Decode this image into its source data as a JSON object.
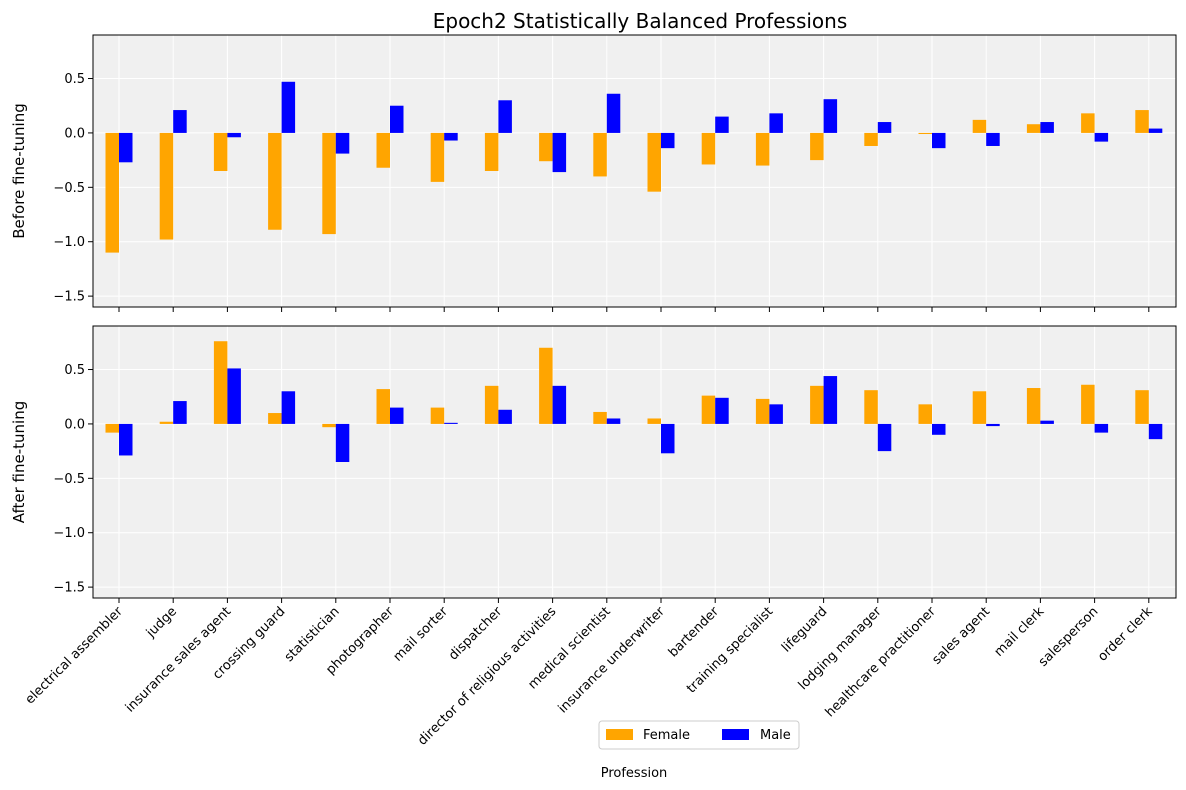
{
  "chart_data": {
    "type": "bar",
    "title": "Epoch2 Statistically Balanced Professions",
    "xlabel": "Profession",
    "categories": [
      "electrical assembler",
      "judge",
      "insurance sales agent",
      "crossing guard",
      "statistician",
      "photographer",
      "mail sorter",
      "dispatcher",
      "director of religious activities",
      "medical scientist",
      "insurance underwriter",
      "bartender",
      "training specialist",
      "lifeguard",
      "lodging manager",
      "healthcare practitioner",
      "sales agent",
      "mail clerk",
      "salesperson",
      "order clerk"
    ],
    "legend": {
      "position": "bottom-center",
      "entries": [
        "Female",
        "Male"
      ]
    },
    "colors": {
      "Female": "#ffa500",
      "Male": "#0000ff",
      "plot_bg": "#f0f0f0",
      "grid": "#ffffff"
    },
    "grid": true,
    "yticks": [
      "0.5",
      "0.0",
      "−0.5",
      "−1.0",
      "−1.5"
    ],
    "ytick_values": [
      0.5,
      0.0,
      -0.5,
      -1.0,
      -1.5
    ],
    "panels": [
      {
        "ylabel": "Before fine-tuning",
        "ylim": [
          -1.6,
          0.9
        ],
        "series": [
          {
            "name": "Female",
            "values": [
              -1.1,
              -0.98,
              -0.35,
              -0.89,
              -0.93,
              -0.32,
              -0.45,
              -0.35,
              -0.26,
              -0.4,
              -0.54,
              -0.29,
              -0.3,
              -0.25,
              -0.12,
              -0.01,
              0.12,
              0.08,
              0.18,
              0.21
            ]
          },
          {
            "name": "Male",
            "values": [
              -0.27,
              0.21,
              -0.04,
              0.47,
              -0.19,
              0.25,
              -0.07,
              0.3,
              -0.36,
              0.36,
              -0.14,
              0.15,
              0.18,
              0.31,
              0.1,
              -0.14,
              -0.12,
              0.1,
              -0.08,
              0.04
            ]
          }
        ]
      },
      {
        "ylabel": "After fine-tuning",
        "ylim": [
          -1.6,
          0.9
        ],
        "series": [
          {
            "name": "Female",
            "values": [
              -0.08,
              0.02,
              0.76,
              0.1,
              -0.03,
              0.32,
              0.15,
              0.35,
              0.7,
              0.11,
              0.05,
              0.26,
              0.23,
              0.35,
              0.31,
              0.18,
              0.3,
              0.33,
              0.36,
              0.31
            ]
          },
          {
            "name": "Male",
            "values": [
              -0.29,
              0.21,
              0.51,
              0.3,
              -0.35,
              0.15,
              0.01,
              0.13,
              0.35,
              0.05,
              -0.27,
              0.24,
              0.18,
              0.44,
              -0.25,
              -0.1,
              -0.02,
              0.03,
              -0.08,
              -0.14
            ]
          }
        ]
      }
    ]
  }
}
